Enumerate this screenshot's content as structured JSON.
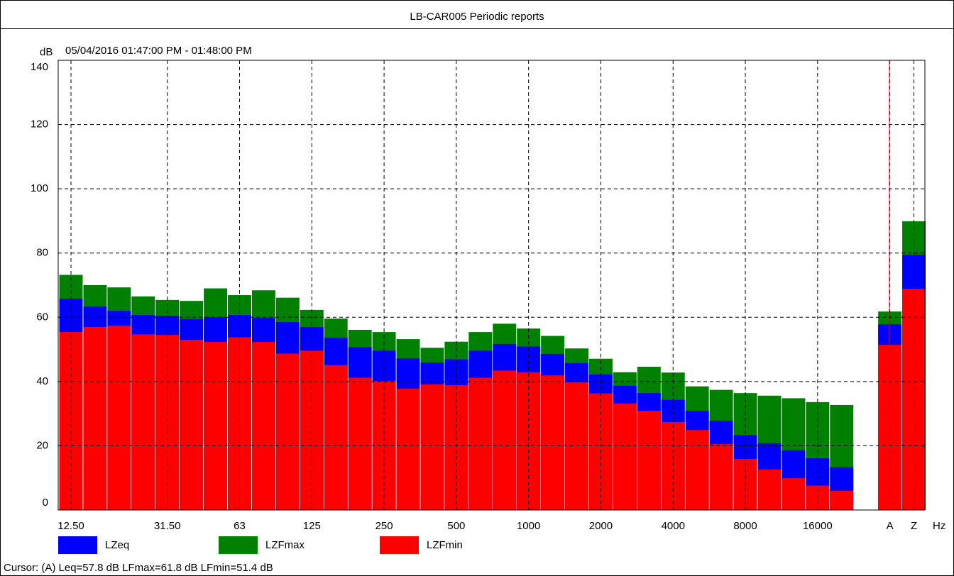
{
  "chart_data": {
    "type": "bar",
    "title": "LB-CAR005 Periodic reports",
    "subtitle": "05/04/2016 01:47:00 PM - 01:48:00 PM",
    "y_label": "dB",
    "x_label": "Hz",
    "categories": [
      "12.50",
      null,
      null,
      null,
      "31.50",
      null,
      null,
      "63",
      null,
      null,
      "125",
      null,
      null,
      "250",
      null,
      null,
      "500",
      null,
      null,
      "1000",
      null,
      null,
      "2000",
      null,
      null,
      "4000",
      null,
      null,
      "8000",
      null,
      null,
      "16000",
      null,
      null,
      "A",
      "Z"
    ],
    "series": [
      {
        "name": "LZeq",
        "color": "#0000ff",
        "values": [
          65.8,
          63.3,
          62.0,
          60.7,
          60.5,
          59.5,
          60.0,
          60.7,
          59.8,
          58.5,
          57.0,
          53.6,
          50.7,
          49.6,
          47.2,
          45.9,
          46.9,
          49.6,
          51.7,
          50.9,
          48.6,
          45.7,
          42.2,
          38.7,
          36.4,
          34.3,
          30.9,
          27.8,
          23.3,
          20.8,
          18.6,
          16.1,
          13.3,
          null,
          57.8,
          79.4
        ]
      },
      {
        "name": "LZFmax",
        "color": "#008000",
        "values": [
          73.2,
          70.0,
          69.3,
          66.5,
          65.4,
          65.1,
          69.0,
          66.9,
          68.4,
          66.1,
          62.3,
          59.6,
          56.1,
          55.4,
          53.2,
          50.5,
          52.4,
          55.4,
          58.0,
          56.5,
          54.2,
          50.3,
          47.1,
          42.9,
          44.6,
          42.8,
          38.5,
          37.4,
          36.4,
          35.6,
          34.8,
          33.6,
          32.7,
          null,
          61.8,
          89.9
        ]
      },
      {
        "name": "LZFmin",
        "color": "#ff0000",
        "values": [
          55.4,
          57.0,
          57.4,
          54.7,
          54.5,
          53.0,
          52.3,
          53.8,
          52.3,
          48.7,
          49.6,
          45.1,
          41.2,
          40.2,
          37.8,
          39.1,
          38.9,
          41.2,
          43.4,
          42.9,
          41.9,
          39.8,
          36.3,
          33.2,
          30.9,
          27.4,
          24.9,
          20.5,
          15.9,
          12.6,
          9.9,
          7.6,
          6.0,
          null,
          51.4,
          68.9
        ]
      }
    ],
    "ylim": [
      0,
      140
    ],
    "yticks": [
      0,
      20,
      40,
      60,
      80,
      100,
      120,
      140
    ],
    "grid": true,
    "cursor_text": "Cursor: (A)  Leq=57.8 dB  LFmax=61.8 dB  LFmin=51.4 dB"
  }
}
